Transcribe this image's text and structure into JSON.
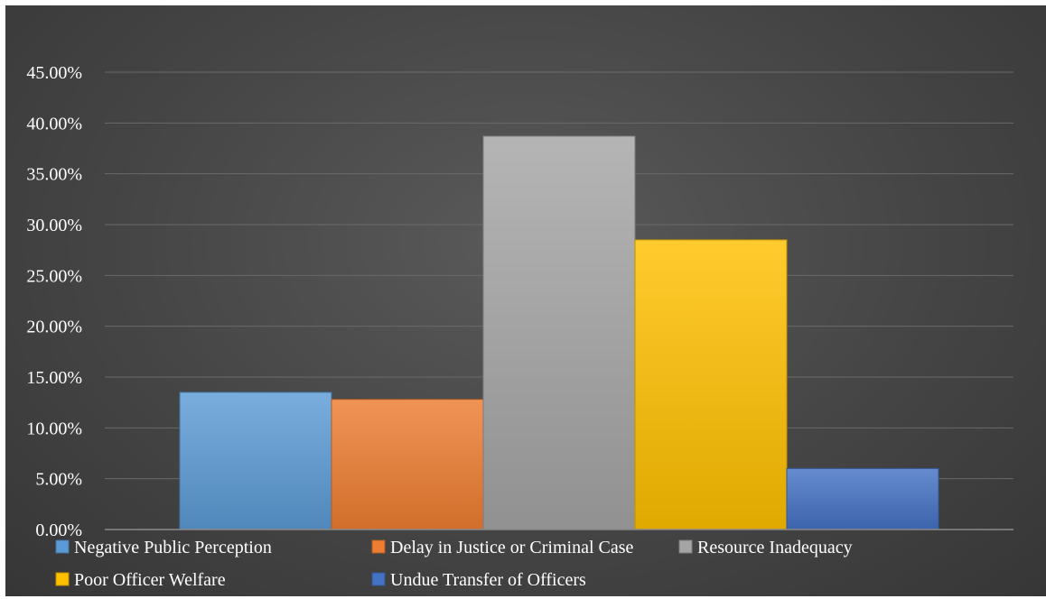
{
  "chart_data": {
    "type": "bar",
    "title": "",
    "xlabel": "",
    "ylabel": "",
    "ylim": [
      0,
      0.45
    ],
    "ytick_step": 0.05,
    "ytick_labels": [
      "0.00%",
      "5.00%",
      "10.00%",
      "15.00%",
      "20.00%",
      "25.00%",
      "30.00%",
      "35.00%",
      "40.00%",
      "45.00%"
    ],
    "grid": true,
    "legend_position": "bottom",
    "series": [
      {
        "name": "Negative Public Perception",
        "value": 0.135,
        "color": "#5b9bd5"
      },
      {
        "name": "Delay in Justice or Criminal Case",
        "value": 0.128,
        "color": "#ed7d31"
      },
      {
        "name": "Resource Inadequacy",
        "value": 0.387,
        "color": "#a5a5a5"
      },
      {
        "name": "Poor Officer Welfare",
        "value": 0.285,
        "color": "#ffc000"
      },
      {
        "name": "Undue Transfer of Officers",
        "value": 0.06,
        "color": "#4472c4"
      }
    ]
  }
}
